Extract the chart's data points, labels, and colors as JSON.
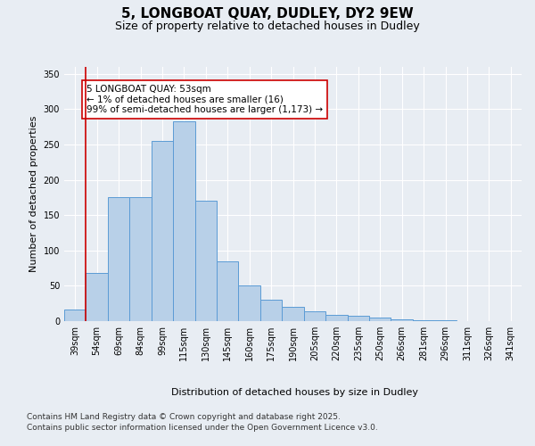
{
  "title_line1": "5, LONGBOAT QUAY, DUDLEY, DY2 9EW",
  "title_line2": "Size of property relative to detached houses in Dudley",
  "xlabel": "Distribution of detached houses by size in Dudley",
  "ylabel": "Number of detached properties",
  "categories": [
    "39sqm",
    "54sqm",
    "69sqm",
    "84sqm",
    "99sqm",
    "115sqm",
    "130sqm",
    "145sqm",
    "160sqm",
    "175sqm",
    "190sqm",
    "205sqm",
    "220sqm",
    "235sqm",
    "250sqm",
    "266sqm",
    "281sqm",
    "296sqm",
    "311sqm",
    "326sqm",
    "341sqm"
  ],
  "bar_values": [
    17,
    68,
    175,
    176,
    255,
    283,
    170,
    85,
    51,
    30,
    20,
    14,
    9,
    7,
    5,
    2,
    1,
    1,
    0,
    0,
    0
  ],
  "bar_color": "#b8d0e8",
  "bar_edge_color": "#5b9bd5",
  "vline_color": "#cc0000",
  "annotation_text": "5 LONGBOAT QUAY: 53sqm\n← 1% of detached houses are smaller (16)\n99% of semi-detached houses are larger (1,173) →",
  "annotation_box_color": "#ffffff",
  "annotation_box_edge_color": "#cc0000",
  "ylim": [
    0,
    360
  ],
  "yticks": [
    0,
    50,
    100,
    150,
    200,
    250,
    300,
    350
  ],
  "background_color": "#e8edf3",
  "grid_color": "#ffffff",
  "footer_line1": "Contains HM Land Registry data © Crown copyright and database right 2025.",
  "footer_line2": "Contains public sector information licensed under the Open Government Licence v3.0.",
  "title_fontsize": 11,
  "subtitle_fontsize": 9,
  "axis_label_fontsize": 8,
  "tick_fontsize": 7,
  "annotation_fontsize": 7.5,
  "footer_fontsize": 6.5
}
